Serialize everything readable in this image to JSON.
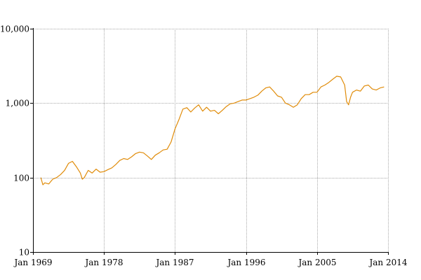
{
  "chart_data": {
    "type": "line",
    "title": "",
    "xlabel": "",
    "ylabel": "",
    "y_scale": "log",
    "ylim": [
      10,
      10000
    ],
    "xlim": [
      "1969-01",
      "2014-01"
    ],
    "grid": true,
    "legend": "none",
    "x_ticks": [
      {
        "value": "1969-01",
        "label": "Jan 1969"
      },
      {
        "value": "1978-01",
        "label": "Jan 1978"
      },
      {
        "value": "1987-01",
        "label": "Jan 1987"
      },
      {
        "value": "1996-01",
        "label": "Jan 1996"
      },
      {
        "value": "2005-01",
        "label": "Jan 2005"
      },
      {
        "value": "2014-01",
        "label": "Jan 2014"
      }
    ],
    "y_ticks": [
      {
        "value": 10,
        "label": "10"
      },
      {
        "value": 100,
        "label": "100"
      },
      {
        "value": 1000,
        "label": "1,000"
      },
      {
        "value": 10000,
        "label": "10,000"
      }
    ],
    "colors": {
      "line": "#e08c0a"
    },
    "series": [
      {
        "x": [
          "1970-01",
          "1970-04",
          "1970-07",
          "1971-01",
          "1971-07",
          "1972-01",
          "1972-07",
          "1973-01",
          "1973-07",
          "1974-01",
          "1974-07",
          "1975-01",
          "1975-04",
          "1975-07",
          "1976-01",
          "1976-07",
          "1977-01",
          "1977-07",
          "1978-01",
          "1978-07",
          "1979-01",
          "1979-07",
          "1980-01",
          "1980-07",
          "1981-01",
          "1981-07",
          "1982-01",
          "1982-07",
          "1983-01",
          "1983-07",
          "1984-01",
          "1984-07",
          "1985-01",
          "1985-07",
          "1986-01",
          "1986-07",
          "1987-01",
          "1987-07",
          "1988-01",
          "1988-07",
          "1989-01",
          "1989-07",
          "1990-01",
          "1990-07",
          "1991-01",
          "1991-07",
          "1992-01",
          "1992-07",
          "1993-01",
          "1993-07",
          "1994-01",
          "1994-07",
          "1995-01",
          "1995-07",
          "1996-01",
          "1996-07",
          "1997-01",
          "1997-07",
          "1998-01",
          "1998-07",
          "1999-01",
          "1999-07",
          "2000-01",
          "2000-07",
          "2001-01",
          "2001-07",
          "2002-01",
          "2002-07",
          "2003-01",
          "2003-07",
          "2004-01",
          "2004-07",
          "2005-01",
          "2005-07",
          "2006-01",
          "2006-07",
          "2007-01",
          "2007-07",
          "2008-01",
          "2008-07",
          "2008-10",
          "2009-01",
          "2009-04",
          "2009-07",
          "2010-01",
          "2010-07",
          "2011-01",
          "2011-07",
          "2012-01",
          "2012-07",
          "2013-01",
          "2013-07"
        ],
        "values": [
          100,
          80,
          85,
          82,
          95,
          100,
          110,
          125,
          155,
          165,
          140,
          115,
          95,
          100,
          125,
          115,
          130,
          118,
          120,
          128,
          135,
          150,
          170,
          180,
          175,
          190,
          210,
          220,
          215,
          195,
          175,
          200,
          215,
          235,
          240,
          300,
          450,
          600,
          830,
          870,
          760,
          860,
          950,
          780,
          880,
          780,
          800,
          720,
          800,
          900,
          980,
          1000,
          1050,
          1100,
          1100,
          1150,
          1200,
          1280,
          1450,
          1600,
          1650,
          1450,
          1250,
          1200,
          1000,
          950,
          880,
          950,
          1150,
          1300,
          1300,
          1400,
          1400,
          1650,
          1750,
          1900,
          2100,
          2300,
          2250,
          1750,
          1050,
          950,
          1200,
          1400,
          1500,
          1450,
          1700,
          1750,
          1550,
          1500,
          1600,
          1650
        ]
      }
    ]
  }
}
